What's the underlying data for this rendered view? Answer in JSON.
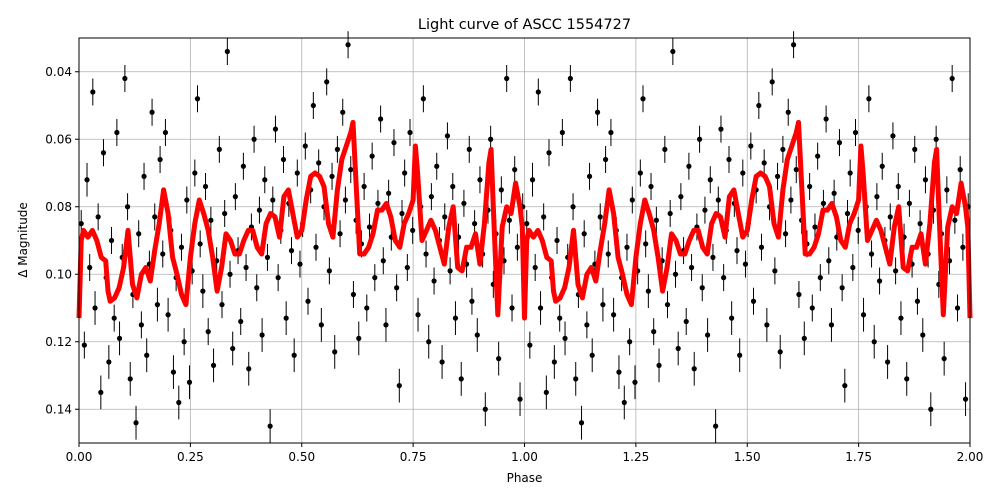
{
  "chart_data": {
    "type": "scatter",
    "title": "Light curve of ASCC 1554727",
    "xlabel": "Phase",
    "ylabel": "Δ Magnitude",
    "xlim": [
      0,
      2
    ],
    "ylim": [
      0.15,
      0.03
    ],
    "y_inverted": true,
    "grid": true,
    "cycles_shown": 2,
    "xticks": [
      "0.00",
      "0.25",
      "0.50",
      "0.75",
      "1.00",
      "1.25",
      "1.50",
      "1.75",
      "2.00"
    ],
    "xtick_values": [
      0,
      0.25,
      0.5,
      0.75,
      1,
      1.25,
      1.5,
      1.75,
      2
    ],
    "yticks": [
      "0.04",
      "0.06",
      "0.08",
      "0.10",
      "0.12",
      "0.14"
    ],
    "ytick_values": [
      0.04,
      0.06,
      0.08,
      0.1,
      0.12,
      0.14
    ],
    "colors": {
      "points": "#000000",
      "model": "#ff0000",
      "grid": "#b0b0b0"
    },
    "observations": [
      [
        0.005,
        0.085,
        0.004
      ],
      [
        0.012,
        0.121,
        0.004
      ],
      [
        0.018,
        0.072,
        0.005
      ],
      [
        0.024,
        0.098,
        0.004
      ],
      [
        0.031,
        0.046,
        0.004
      ],
      [
        0.036,
        0.11,
        0.005
      ],
      [
        0.043,
        0.083,
        0.004
      ],
      [
        0.049,
        0.135,
        0.005
      ],
      [
        0.055,
        0.064,
        0.004
      ],
      [
        0.061,
        0.101,
        0.004
      ],
      [
        0.067,
        0.126,
        0.005
      ],
      [
        0.073,
        0.09,
        0.004
      ],
      [
        0.079,
        0.113,
        0.004
      ],
      [
        0.085,
        0.058,
        0.004
      ],
      [
        0.091,
        0.119,
        0.005
      ],
      [
        0.097,
        0.095,
        0.004
      ],
      [
        0.103,
        0.042,
        0.004
      ],
      [
        0.109,
        0.08,
        0.004
      ],
      [
        0.115,
        0.131,
        0.005
      ],
      [
        0.121,
        0.106,
        0.004
      ],
      [
        0.128,
        0.144,
        0.005
      ],
      [
        0.134,
        0.088,
        0.004
      ],
      [
        0.14,
        0.115,
        0.004
      ],
      [
        0.146,
        0.071,
        0.004
      ],
      [
        0.152,
        0.124,
        0.005
      ],
      [
        0.158,
        0.097,
        0.004
      ],
      [
        0.164,
        0.052,
        0.004
      ],
      [
        0.17,
        0.083,
        0.004
      ],
      [
        0.176,
        0.109,
        0.005
      ],
      [
        0.182,
        0.066,
        0.004
      ],
      [
        0.188,
        0.094,
        0.004
      ],
      [
        0.194,
        0.058,
        0.004
      ],
      [
        0.2,
        0.112,
        0.005
      ],
      [
        0.206,
        0.087,
        0.004
      ],
      [
        0.212,
        0.129,
        0.005
      ],
      [
        0.218,
        0.101,
        0.004
      ],
      [
        0.224,
        0.138,
        0.005
      ],
      [
        0.23,
        0.092,
        0.004
      ],
      [
        0.236,
        0.12,
        0.004
      ],
      [
        0.242,
        0.078,
        0.004
      ],
      [
        0.248,
        0.132,
        0.005
      ],
      [
        0.254,
        0.099,
        0.004
      ],
      [
        0.26,
        0.07,
        0.004
      ],
      [
        0.266,
        0.048,
        0.004
      ],
      [
        0.272,
        0.091,
        0.004
      ],
      [
        0.278,
        0.105,
        0.005
      ],
      [
        0.284,
        0.074,
        0.004
      ],
      [
        0.29,
        0.117,
        0.004
      ],
      [
        0.296,
        0.084,
        0.004
      ],
      [
        0.302,
        0.127,
        0.005
      ],
      [
        0.309,
        0.096,
        0.004
      ],
      [
        0.315,
        0.063,
        0.004
      ],
      [
        0.321,
        0.109,
        0.004
      ],
      [
        0.327,
        0.082,
        0.004
      ],
      [
        0.333,
        0.034,
        0.004
      ],
      [
        0.339,
        0.1,
        0.004
      ],
      [
        0.345,
        0.122,
        0.005
      ],
      [
        0.351,
        0.077,
        0.004
      ],
      [
        0.357,
        0.093,
        0.004
      ],
      [
        0.363,
        0.114,
        0.004
      ],
      [
        0.369,
        0.068,
        0.004
      ],
      [
        0.375,
        0.098,
        0.004
      ],
      [
        0.381,
        0.128,
        0.005
      ],
      [
        0.387,
        0.086,
        0.004
      ],
      [
        0.393,
        0.06,
        0.004
      ],
      [
        0.399,
        0.104,
        0.004
      ],
      [
        0.405,
        0.081,
        0.004
      ],
      [
        0.411,
        0.118,
        0.005
      ],
      [
        0.417,
        0.072,
        0.004
      ],
      [
        0.423,
        0.095,
        0.004
      ],
      [
        0.429,
        0.145,
        0.005
      ],
      [
        0.435,
        0.078,
        0.004
      ],
      [
        0.441,
        0.057,
        0.004
      ],
      [
        0.447,
        0.101,
        0.004
      ],
      [
        0.453,
        0.087,
        0.004
      ],
      [
        0.459,
        0.066,
        0.004
      ],
      [
        0.465,
        0.113,
        0.005
      ],
      [
        0.471,
        0.079,
        0.004
      ],
      [
        0.477,
        0.093,
        0.004
      ],
      [
        0.483,
        0.124,
        0.005
      ],
      [
        0.49,
        0.07,
        0.004
      ],
      [
        0.496,
        0.097,
        0.004
      ],
      [
        0.502,
        0.085,
        0.004
      ],
      [
        0.508,
        0.062,
        0.004
      ],
      [
        0.514,
        0.108,
        0.004
      ],
      [
        0.52,
        0.075,
        0.004
      ],
      [
        0.526,
        0.05,
        0.004
      ],
      [
        0.532,
        0.092,
        0.004
      ],
      [
        0.538,
        0.067,
        0.004
      ],
      [
        0.544,
        0.115,
        0.005
      ],
      [
        0.55,
        0.08,
        0.004
      ],
      [
        0.556,
        0.043,
        0.004
      ],
      [
        0.562,
        0.099,
        0.004
      ],
      [
        0.568,
        0.071,
        0.004
      ],
      [
        0.574,
        0.123,
        0.005
      ],
      [
        0.58,
        0.063,
        0.004
      ],
      [
        0.586,
        0.088,
        0.004
      ],
      [
        0.592,
        0.052,
        0.004
      ],
      [
        0.598,
        0.078,
        0.004
      ],
      [
        0.604,
        0.032,
        0.004
      ],
      [
        0.61,
        0.069,
        0.004
      ],
      [
        0.616,
        0.106,
        0.004
      ],
      [
        0.622,
        0.084,
        0.004
      ],
      [
        0.628,
        0.119,
        0.005
      ],
      [
        0.634,
        0.091,
        0.004
      ],
      [
        0.64,
        0.074,
        0.004
      ],
      [
        0.646,
        0.11,
        0.004
      ],
      [
        0.652,
        0.086,
        0.004
      ],
      [
        0.658,
        0.065,
        0.004
      ],
      [
        0.664,
        0.101,
        0.004
      ],
      [
        0.671,
        0.079,
        0.004
      ],
      [
        0.677,
        0.054,
        0.004
      ],
      [
        0.683,
        0.096,
        0.004
      ],
      [
        0.689,
        0.115,
        0.005
      ],
      [
        0.695,
        0.076,
        0.004
      ],
      [
        0.701,
        0.089,
        0.004
      ],
      [
        0.707,
        0.061,
        0.004
      ],
      [
        0.713,
        0.104,
        0.004
      ],
      [
        0.719,
        0.133,
        0.005
      ],
      [
        0.725,
        0.082,
        0.004
      ],
      [
        0.731,
        0.07,
        0.004
      ],
      [
        0.737,
        0.098,
        0.004
      ],
      [
        0.743,
        0.058,
        0.004
      ],
      [
        0.749,
        0.087,
        0.004
      ],
      [
        0.755,
        0.066,
        0.004
      ],
      [
        0.761,
        0.112,
        0.005
      ],
      [
        0.767,
        0.08,
        0.004
      ],
      [
        0.773,
        0.048,
        0.004
      ],
      [
        0.779,
        0.094,
        0.004
      ],
      [
        0.785,
        0.12,
        0.005
      ],
      [
        0.791,
        0.077,
        0.004
      ],
      [
        0.797,
        0.102,
        0.004
      ],
      [
        0.803,
        0.068,
        0.004
      ],
      [
        0.809,
        0.09,
        0.004
      ],
      [
        0.815,
        0.126,
        0.005
      ],
      [
        0.821,
        0.083,
        0.004
      ],
      [
        0.827,
        0.059,
        0.004
      ],
      [
        0.833,
        0.099,
        0.004
      ],
      [
        0.839,
        0.074,
        0.004
      ],
      [
        0.845,
        0.113,
        0.005
      ],
      [
        0.852,
        0.089,
        0.004
      ],
      [
        0.858,
        0.131,
        0.005
      ],
      [
        0.864,
        0.079,
        0.004
      ],
      [
        0.87,
        0.097,
        0.004
      ],
      [
        0.876,
        0.063,
        0.004
      ],
      [
        0.882,
        0.108,
        0.004
      ],
      [
        0.888,
        0.085,
        0.004
      ],
      [
        0.894,
        0.118,
        0.005
      ],
      [
        0.9,
        0.072,
        0.004
      ],
      [
        0.906,
        0.094,
        0.004
      ],
      [
        0.912,
        0.14,
        0.005
      ],
      [
        0.918,
        0.081,
        0.004
      ],
      [
        0.924,
        0.06,
        0.004
      ],
      [
        0.93,
        0.103,
        0.004
      ],
      [
        0.936,
        0.088,
        0.004
      ],
      [
        0.942,
        0.125,
        0.005
      ],
      [
        0.948,
        0.075,
        0.004
      ],
      [
        0.954,
        0.096,
        0.004
      ],
      [
        0.96,
        0.042,
        0.004
      ],
      [
        0.966,
        0.084,
        0.004
      ],
      [
        0.972,
        0.11,
        0.004
      ],
      [
        0.978,
        0.069,
        0.004
      ],
      [
        0.984,
        0.092,
        0.004
      ],
      [
        0.99,
        0.137,
        0.005
      ],
      [
        0.996,
        0.08,
        0.004
      ]
    ],
    "model": {
      "phase": [
        0.0,
        0.005,
        0.01,
        0.02,
        0.03,
        0.04,
        0.05,
        0.06,
        0.065,
        0.07,
        0.08,
        0.09,
        0.1,
        0.11,
        0.12,
        0.13,
        0.14,
        0.15,
        0.16,
        0.17,
        0.18,
        0.19,
        0.2,
        0.21,
        0.22,
        0.23,
        0.24,
        0.25,
        0.26,
        0.27,
        0.28,
        0.29,
        0.3,
        0.31,
        0.32,
        0.33,
        0.34,
        0.35,
        0.36,
        0.37,
        0.38,
        0.39,
        0.4,
        0.41,
        0.42,
        0.43,
        0.44,
        0.45,
        0.46,
        0.47,
        0.48,
        0.49,
        0.5,
        0.51,
        0.52,
        0.53,
        0.54,
        0.55,
        0.56,
        0.57,
        0.58,
        0.59,
        0.6,
        0.61,
        0.615,
        0.62,
        0.63,
        0.64,
        0.65,
        0.66,
        0.67,
        0.68,
        0.69,
        0.7,
        0.71,
        0.72,
        0.73,
        0.74,
        0.75,
        0.755,
        0.76,
        0.77,
        0.78,
        0.79,
        0.8,
        0.81,
        0.82,
        0.83,
        0.84,
        0.85,
        0.86,
        0.87,
        0.88,
        0.89,
        0.9,
        0.91,
        0.92,
        0.925,
        0.93,
        0.94,
        0.95,
        0.96,
        0.97,
        0.98,
        0.99,
        0.995
      ],
      "magnitude": [
        0.113,
        0.09,
        0.087,
        0.089,
        0.087,
        0.09,
        0.095,
        0.096,
        0.105,
        0.108,
        0.107,
        0.104,
        0.098,
        0.087,
        0.103,
        0.107,
        0.1,
        0.098,
        0.102,
        0.093,
        0.085,
        0.075,
        0.082,
        0.095,
        0.1,
        0.106,
        0.109,
        0.095,
        0.085,
        0.078,
        0.082,
        0.087,
        0.095,
        0.105,
        0.098,
        0.088,
        0.09,
        0.094,
        0.094,
        0.09,
        0.087,
        0.087,
        0.092,
        0.094,
        0.085,
        0.082,
        0.083,
        0.089,
        0.077,
        0.075,
        0.082,
        0.089,
        0.087,
        0.078,
        0.071,
        0.07,
        0.071,
        0.074,
        0.085,
        0.089,
        0.075,
        0.066,
        0.062,
        0.058,
        0.055,
        0.068,
        0.094,
        0.094,
        0.092,
        0.088,
        0.081,
        0.081,
        0.079,
        0.083,
        0.09,
        0.092,
        0.085,
        0.082,
        0.078,
        0.062,
        0.07,
        0.09,
        0.087,
        0.084,
        0.087,
        0.092,
        0.097,
        0.086,
        0.08,
        0.098,
        0.099,
        0.092,
        0.092,
        0.088,
        0.097,
        0.085,
        0.067,
        0.063,
        0.08,
        0.112,
        0.086,
        0.08,
        0.082,
        0.073,
        0.08,
        0.086
      ]
    }
  }
}
